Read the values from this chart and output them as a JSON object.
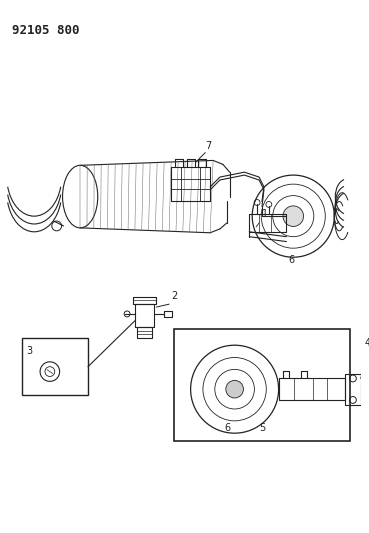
{
  "title_text": "92105 800",
  "bg_color": "#ffffff",
  "line_color": "#222222",
  "figsize": [
    3.69,
    5.33
  ],
  "dpi": 100
}
